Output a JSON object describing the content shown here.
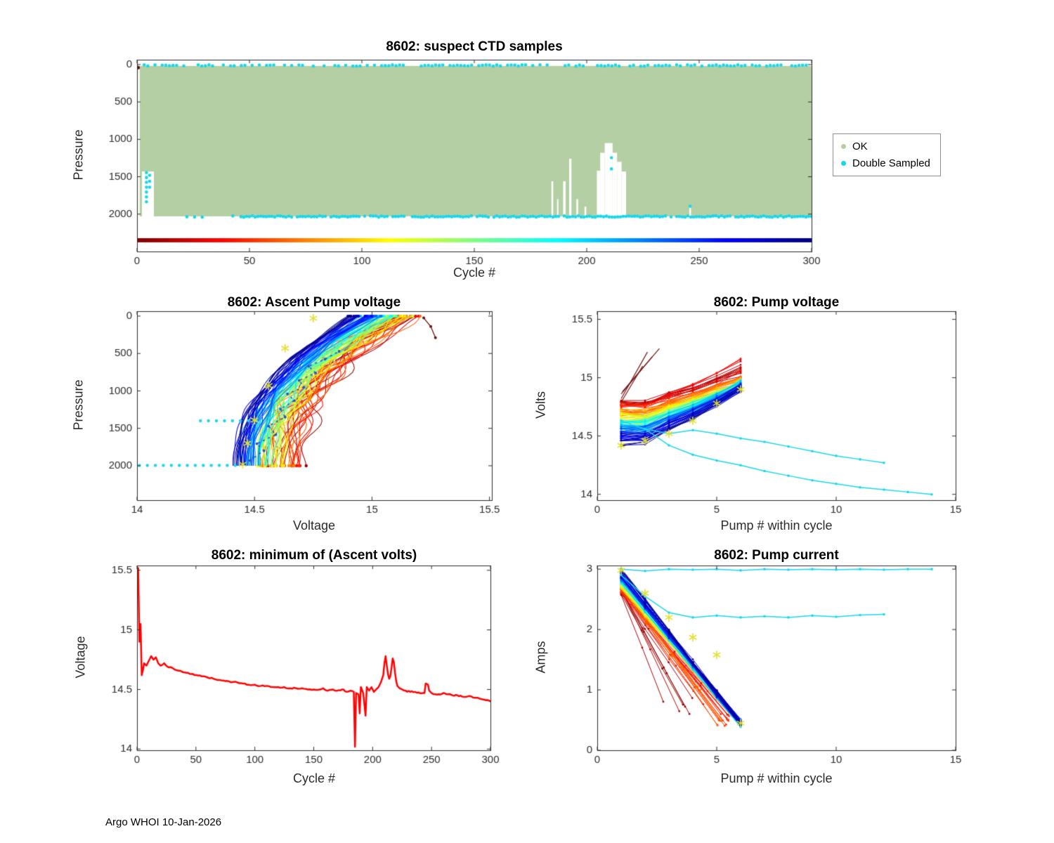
{
  "meta": {
    "footer": "Argo WHOI 10-Jan-2026",
    "seed": 7
  },
  "chart_data": {
    "ctd": {
      "type": "scatter",
      "title": "8602: suspect CTD samples",
      "xlabel": "Cycle #",
      "ylabel": "Pressure",
      "xlim": [
        0,
        300
      ],
      "xticks": [
        0,
        50,
        100,
        150,
        200,
        250,
        300
      ],
      "ylim": [
        -65,
        2500
      ],
      "yticks": [
        0,
        500,
        1000,
        1500,
        2000
      ],
      "y_reversed": true,
      "ok_color": "#b4cfa4",
      "double_color": "#17d7ec",
      "ok_band": {
        "x0": 1.2,
        "x1": 300,
        "top": 18,
        "bottom": 2030
      },
      "gaps": [
        {
          "x0": 2.2,
          "x1": 7.5,
          "top": 1430
        },
        {
          "x0": 184.3,
          "x1": 185.1,
          "top": 1560
        },
        {
          "x0": 186.8,
          "x1": 187.4,
          "top": 1800
        },
        {
          "x0": 189.5,
          "x1": 190.6,
          "top": 1560
        },
        {
          "x0": 192.2,
          "x1": 193.2,
          "top": 1260
        },
        {
          "x0": 195.4,
          "x1": 196.2,
          "top": 1800
        },
        {
          "x0": 199.0,
          "x1": 199.8,
          "top": 1900
        },
        {
          "x0": 204.5,
          "x1": 206.0,
          "top": 1420
        },
        {
          "x0": 206.0,
          "x1": 208.0,
          "top": 1180
        },
        {
          "x0": 208.0,
          "x1": 211.5,
          "top": 1050
        },
        {
          "x0": 211.5,
          "x1": 213.5,
          "top": 1180
        },
        {
          "x0": 213.5,
          "x1": 215.5,
          "top": 1300
        },
        {
          "x0": 215.5,
          "x1": 217.5,
          "top": 1430
        },
        {
          "x0": 245.6,
          "x1": 246.4,
          "top": 1880
        }
      ],
      "double_rows": [
        {
          "y": 12,
          "x0": 0,
          "x1": 300,
          "step": 1.6,
          "skip": 0.35
        },
        {
          "y": 2032,
          "x0": 12,
          "x1": 45,
          "step": 3.4,
          "skip": 0.35
        },
        {
          "y": 2032,
          "x0": 45,
          "x1": 300,
          "step": 1.25,
          "skip": 0.08
        }
      ],
      "double_clusters": [
        {
          "x": 4.2,
          "ys": [
            1445,
            1510,
            1575,
            1640,
            1705,
            1770,
            1835
          ]
        },
        {
          "x": 5.6,
          "ys": [
            1480,
            1560,
            1640
          ]
        },
        {
          "x": 211,
          "ys": [
            1245,
            1395
          ]
        },
        {
          "x": 246,
          "ys": [
            1895
          ]
        }
      ],
      "dark_points": [
        [
          0.5,
          40
        ]
      ],
      "cycle_strip": {
        "y": 2350,
        "step": 0.75,
        "dot_r": 3
      },
      "legend": [
        {
          "label": "OK",
          "color": "#b4cfa4"
        },
        {
          "label": "Double Sampled",
          "color": "#17d7ec"
        }
      ]
    },
    "ascent": {
      "type": "line",
      "title": "8602: Ascent Pump voltage",
      "xlabel": "Voltage",
      "ylabel": "Pressure",
      "xlim": [
        14,
        15.51
      ],
      "xticks": [
        14,
        14.5,
        15,
        15.5
      ],
      "ylim": [
        -65,
        2460
      ],
      "yticks": [
        0,
        500,
        1000,
        1500,
        2000
      ],
      "y_reversed": true,
      "bundle": {
        "count": 100,
        "pmax": 2000,
        "p_step": 50,
        "shape_exp": 2.2,
        "v_bottom_early": 14.66,
        "v_bottom_late": 14.41,
        "jb_early": 0.18,
        "jb_late": 0.05,
        "v_top_early": 15.18,
        "v_top_late": 14.93,
        "jt_early": 0.16,
        "jt_late": 0.07,
        "wiggle_early": 0.05,
        "wiggle_late": 0.008
      },
      "stars": [
        [
          14.75,
          30
        ],
        [
          14.63,
          430
        ],
        [
          14.56,
          930
        ],
        [
          14.5,
          1390
        ],
        [
          14.47,
          1700
        ],
        [
          14.45,
          1980
        ]
      ],
      "cyan_dotted": [
        {
          "p": 1400,
          "v0": 14.27,
          "v1": 14.53
        },
        {
          "p": 1995,
          "v0": 14.01,
          "v1": 14.42
        }
      ],
      "blue_dashed": [
        [
          14.48,
          1930
        ],
        [
          14.54,
          1800
        ],
        [
          14.51,
          1705
        ],
        [
          14.59,
          1585
        ],
        [
          14.56,
          1470
        ],
        [
          14.63,
          1350
        ],
        [
          14.61,
          1240
        ],
        [
          14.67,
          1130
        ],
        [
          14.64,
          1040
        ],
        [
          14.71,
          950
        ],
        [
          14.69,
          860
        ],
        [
          14.76,
          760
        ],
        [
          14.73,
          670
        ],
        [
          14.8,
          575
        ],
        [
          14.86,
          470
        ]
      ],
      "dark_red_points": [
        [
          15.52,
          90
        ]
      ],
      "dark_red_series": [
        [
          15.22,
          25
        ],
        [
          15.25,
          140
        ],
        [
          15.27,
          290
        ]
      ]
    },
    "pumpv": {
      "type": "line",
      "title": "8602: Pump voltage",
      "xlabel": "Pump # within cycle",
      "ylabel": "Volts",
      "xlim": [
        0,
        15
      ],
      "xticks": [
        0,
        5,
        10,
        15
      ],
      "ylim": [
        13.95,
        15.57
      ],
      "yticks": [
        14,
        14.5,
        15,
        15.5
      ],
      "bundle": {
        "count": 100,
        "x": [
          1,
          2,
          3,
          4,
          5,
          6
        ],
        "start_early": 14.78,
        "start_late": 14.46,
        "js": 0.09,
        "end_early": 15.0,
        "end_late": 14.9,
        "je": 0.07,
        "dip2": 0.06,
        "early_boost": 0.2,
        "rise_exp": 1.5,
        "pt_jitter": 0.015
      },
      "steep_lines": [
        [
          [
            1,
            14.82
          ],
          [
            2.1,
            15.22
          ]
        ],
        [
          [
            1,
            14.86
          ],
          [
            2.3,
            15.18
          ]
        ],
        [
          [
            1,
            14.79
          ],
          [
            1.9,
            15.1
          ]
        ],
        [
          [
            1.05,
            14.88
          ],
          [
            2.6,
            15.25
          ]
        ]
      ],
      "stars": [
        [
          1,
          14.42
        ],
        [
          2,
          14.46
        ],
        [
          3,
          14.52
        ],
        [
          4,
          14.63
        ],
        [
          5,
          14.78
        ],
        [
          6,
          14.9
        ]
      ],
      "cyan_series": [
        [
          [
            1,
            14.63
          ],
          [
            2,
            14.56
          ],
          [
            3,
            14.52
          ],
          [
            4,
            14.55
          ],
          [
            5,
            14.52
          ],
          [
            6,
            14.48
          ],
          [
            7,
            14.45
          ],
          [
            8,
            14.41
          ],
          [
            9,
            14.37
          ],
          [
            10,
            14.33
          ],
          [
            11,
            14.3
          ],
          [
            12,
            14.27
          ]
        ],
        [
          [
            2,
            14.56
          ],
          [
            3,
            14.42
          ],
          [
            4,
            14.34
          ],
          [
            5,
            14.29
          ],
          [
            6,
            14.25
          ],
          [
            7,
            14.2
          ],
          [
            8,
            14.16
          ],
          [
            9,
            14.12
          ],
          [
            10,
            14.09
          ],
          [
            11,
            14.06
          ],
          [
            12,
            14.04
          ],
          [
            13,
            14.02
          ],
          [
            14,
            14.0
          ]
        ]
      ]
    },
    "minvolts": {
      "type": "line",
      "title": "8602: minimum of (Ascent volts)",
      "xlabel": "Cycle #",
      "ylabel": "Voltage",
      "xlim": [
        0,
        300
      ],
      "xticks": [
        0,
        50,
        100,
        150,
        200,
        250,
        300
      ],
      "ylim": [
        13.99,
        15.54
      ],
      "yticks": [
        14,
        14.5,
        15,
        15.5
      ],
      "color": "#ff0000",
      "linewidth": 2.5,
      "points": [
        [
          0,
          15.52
        ],
        [
          1,
          15.52
        ],
        [
          2,
          14.9
        ],
        [
          3,
          15.05
        ],
        [
          4,
          14.62
        ],
        [
          5,
          14.66
        ],
        [
          6,
          14.72
        ],
        [
          8,
          14.7
        ],
        [
          10,
          14.74
        ],
        [
          12,
          14.78
        ],
        [
          14,
          14.75
        ],
        [
          16,
          14.77
        ],
        [
          18,
          14.72
        ],
        [
          20,
          14.7
        ],
        [
          23,
          14.72
        ],
        [
          26,
          14.69
        ],
        [
          30,
          14.68
        ],
        [
          34,
          14.66
        ],
        [
          38,
          14.65
        ],
        [
          42,
          14.64
        ],
        [
          46,
          14.63
        ],
        [
          50,
          14.62
        ],
        [
          55,
          14.61
        ],
        [
          60,
          14.6
        ],
        [
          65,
          14.59
        ],
        [
          70,
          14.58
        ],
        [
          75,
          14.57
        ],
        [
          80,
          14.56
        ],
        [
          85,
          14.56
        ],
        [
          90,
          14.55
        ],
        [
          95,
          14.54
        ],
        [
          100,
          14.54
        ],
        [
          105,
          14.53
        ],
        [
          110,
          14.53
        ],
        [
          115,
          14.52
        ],
        [
          120,
          14.52
        ],
        [
          125,
          14.52
        ],
        [
          130,
          14.51
        ],
        [
          135,
          14.51
        ],
        [
          140,
          14.51
        ],
        [
          145,
          14.5
        ],
        [
          150,
          14.5
        ],
        [
          155,
          14.5
        ],
        [
          158,
          14.51
        ],
        [
          162,
          14.49
        ],
        [
          166,
          14.5
        ],
        [
          170,
          14.49
        ],
        [
          174,
          14.5
        ],
        [
          178,
          14.48
        ],
        [
          181,
          14.49
        ],
        [
          184,
          14.48
        ],
        [
          185,
          14.02
        ],
        [
          186,
          14.47
        ],
        [
          188,
          14.46
        ],
        [
          189,
          14.3
        ],
        [
          190,
          14.52
        ],
        [
          192,
          14.47
        ],
        [
          194,
          14.28
        ],
        [
          195,
          14.52
        ],
        [
          197,
          14.49
        ],
        [
          199,
          14.52
        ],
        [
          201,
          14.48
        ],
        [
          203,
          14.5
        ],
        [
          205,
          14.52
        ],
        [
          207,
          14.56
        ],
        [
          209,
          14.62
        ],
        [
          210,
          14.72
        ],
        [
          211,
          14.78
        ],
        [
          212,
          14.7
        ],
        [
          213,
          14.63
        ],
        [
          214,
          14.59
        ],
        [
          215,
          14.61
        ],
        [
          216,
          14.68
        ],
        [
          217,
          14.76
        ],
        [
          218,
          14.73
        ],
        [
          219,
          14.64
        ],
        [
          220,
          14.57
        ],
        [
          221,
          14.53
        ],
        [
          223,
          14.51
        ],
        [
          225,
          14.5
        ],
        [
          228,
          14.49
        ],
        [
          232,
          14.48
        ],
        [
          236,
          14.48
        ],
        [
          240,
          14.47
        ],
        [
          244,
          14.47
        ],
        [
          245,
          14.55
        ],
        [
          247,
          14.54
        ],
        [
          248,
          14.49
        ],
        [
          250,
          14.47
        ],
        [
          253,
          14.46
        ],
        [
          256,
          14.46
        ],
        [
          260,
          14.47
        ],
        [
          264,
          14.46
        ],
        [
          268,
          14.45
        ],
        [
          272,
          14.45
        ],
        [
          276,
          14.44
        ],
        [
          280,
          14.44
        ],
        [
          284,
          14.44
        ],
        [
          288,
          14.43
        ],
        [
          292,
          14.42
        ],
        [
          296,
          14.41
        ],
        [
          300,
          14.4
        ]
      ]
    },
    "pumpc": {
      "type": "line",
      "title": "8602: Pump current",
      "xlabel": "Pump # within cycle",
      "ylabel": "Amps",
      "xlim": [
        0,
        15
      ],
      "xticks": [
        0,
        5,
        10,
        15
      ],
      "ylim": [
        0,
        3.06
      ],
      "yticks": [
        0,
        1,
        2,
        3
      ],
      "bundle": {
        "count": 100,
        "start_early": 2.62,
        "start_late": 2.95,
        "js": 0.14,
        "end": 0.45,
        "je": 0.13,
        "short_frac": 0.07,
        "mid_frac": 0.25,
        "pt_jitter": 0.02
      },
      "stars": [
        [
          1,
          2.98
        ],
        [
          2,
          2.6
        ],
        [
          3,
          2.2
        ],
        [
          4,
          1.87
        ],
        [
          5,
          1.58
        ],
        [
          6,
          0.45
        ]
      ],
      "cyan_series": [
        [
          [
            1,
            3.0
          ],
          [
            2,
            2.97
          ],
          [
            3,
            3.0
          ],
          [
            4,
            2.99
          ],
          [
            5,
            3.0
          ],
          [
            6,
            2.98
          ],
          [
            7,
            3.0
          ],
          [
            8,
            2.99
          ],
          [
            9,
            3.0
          ],
          [
            10,
            2.99
          ],
          [
            11,
            3.0
          ],
          [
            12,
            2.99
          ],
          [
            13,
            3.0
          ],
          [
            14,
            3.0
          ]
        ],
        [
          [
            1,
            2.9
          ],
          [
            2,
            2.55
          ],
          [
            3,
            2.28
          ],
          [
            4,
            2.2
          ],
          [
            5,
            2.23
          ],
          [
            6,
            2.2
          ],
          [
            7,
            2.22
          ],
          [
            8,
            2.2
          ],
          [
            9,
            2.23
          ],
          [
            10,
            2.21
          ],
          [
            11,
            2.24
          ],
          [
            12,
            2.25
          ]
        ]
      ]
    }
  }
}
